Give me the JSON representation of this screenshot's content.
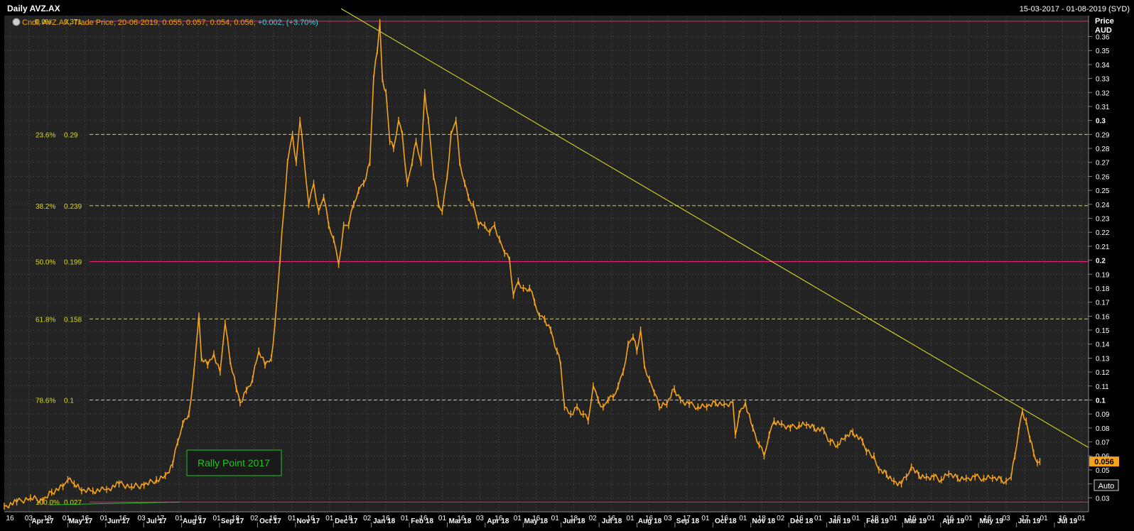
{
  "header": {
    "title": "Daily AVZ.AX",
    "date_range": "15-03-2017 - 01-08-2019 (SYD)",
    "legend_prefix": "Cndl, AVZ.AX, Trade Price, 20-06-2019, 0.055, 0.057, 0.054, 0.056,",
    "legend_change": "+0.002, (+3.70%)"
  },
  "axis": {
    "price_label": "Price",
    "currency_label": "AUD",
    "auto_button": "Auto",
    "last_price_label": "0.056"
  },
  "annotation": {
    "text": "Rally Point 2017"
  },
  "colors": {
    "background": "#232323",
    "grid": "#3a3a3a",
    "price": "#f5a31a",
    "trendline": "#e6e61e",
    "fib_solid": "#e8237a",
    "fib_dashed": "#d8d81a",
    "annotation": "#22c422",
    "change": "#3fd0e0",
    "axis_text": "#ffffff"
  },
  "chart_data": {
    "type": "line",
    "title": "Daily AVZ.AX",
    "ylabel": "Price AUD",
    "ylim": [
      0.02,
      0.375
    ],
    "y_ticks": [
      {
        "v": 0.36,
        "t": "0.36"
      },
      {
        "v": 0.35,
        "t": "0.35"
      },
      {
        "v": 0.34,
        "t": "0.34"
      },
      {
        "v": 0.33,
        "t": "0.33"
      },
      {
        "v": 0.32,
        "t": "0.32"
      },
      {
        "v": 0.31,
        "t": "0.31"
      },
      {
        "v": 0.3,
        "t": "0.3"
      },
      {
        "v": 0.29,
        "t": "0.29"
      },
      {
        "v": 0.28,
        "t": "0.28"
      },
      {
        "v": 0.27,
        "t": "0.27"
      },
      {
        "v": 0.26,
        "t": "0.26"
      },
      {
        "v": 0.25,
        "t": "0.25"
      },
      {
        "v": 0.24,
        "t": "0.24"
      },
      {
        "v": 0.23,
        "t": "0.23"
      },
      {
        "v": 0.22,
        "t": "0.22"
      },
      {
        "v": 0.21,
        "t": "0.21"
      },
      {
        "v": 0.2,
        "t": "0.2"
      },
      {
        "v": 0.19,
        "t": "0.19"
      },
      {
        "v": 0.18,
        "t": "0.18"
      },
      {
        "v": 0.17,
        "t": "0.17"
      },
      {
        "v": 0.16,
        "t": "0.16"
      },
      {
        "v": 0.15,
        "t": "0.15"
      },
      {
        "v": 0.14,
        "t": "0.14"
      },
      {
        "v": 0.13,
        "t": "0.13"
      },
      {
        "v": 0.12,
        "t": "0.12"
      },
      {
        "v": 0.11,
        "t": "0.11"
      },
      {
        "v": 0.1,
        "t": "0.1"
      },
      {
        "v": 0.09,
        "t": "0.09"
      },
      {
        "v": 0.08,
        "t": "0.08"
      },
      {
        "v": 0.07,
        "t": "0.07"
      },
      {
        "v": 0.06,
        "t": "0.06"
      },
      {
        "v": 0.05,
        "t": "0.05"
      },
      {
        "v": 0.04,
        "t": "0.04"
      },
      {
        "v": 0.03,
        "t": "0.03"
      }
    ],
    "bold_ticks": [
      "0.3",
      "0.2",
      "0.1"
    ],
    "x_day_ticks": [
      "16",
      "03",
      "18",
      "01",
      "16",
      "01",
      "16",
      "03",
      "17",
      "01",
      "16",
      "01",
      "18",
      "02",
      "16",
      "01",
      "16",
      "01",
      "18",
      "02",
      "16",
      "01",
      "16",
      "01",
      "16",
      "03",
      "16",
      "01",
      "16",
      "01",
      "18",
      "02",
      "16",
      "01",
      "16",
      "03",
      "17",
      "01",
      "16",
      "01",
      "18",
      "02",
      "16",
      "01",
      "16",
      "01",
      "18",
      "01",
      "16",
      "01",
      "16",
      "01",
      "16",
      "03",
      "17",
      "01",
      "16",
      "01"
    ],
    "x_months": [
      "Apr 17",
      "May 17",
      "Jun 17",
      "Jul 17",
      "Aug 17",
      "Sep 17",
      "Oct 17",
      "Nov 17",
      "Dec 17",
      "Jan 18",
      "Feb 18",
      "Mar 18",
      "Apr 18",
      "May 18",
      "Jun 18",
      "Jul 18",
      "Aug 18",
      "Sep 18",
      "Oct 18",
      "Nov 18",
      "Dec 18",
      "Jan 19",
      "Feb 19",
      "Mar 19",
      "Apr 19",
      "May 19",
      "Jun 19",
      "Jul 19"
    ],
    "fib_levels": [
      {
        "pct": "0.0%",
        "label": "0.371",
        "value": 0.371,
        "style": "solid"
      },
      {
        "pct": "23.6%",
        "label": "0.29",
        "value": 0.29,
        "style": "dashed"
      },
      {
        "pct": "38.2%",
        "label": "0.239",
        "value": 0.239,
        "style": "dashed"
      },
      {
        "pct": "50.0%",
        "label": "0.199",
        "value": 0.199,
        "style": "solid"
      },
      {
        "pct": "61.8%",
        "label": "0.158",
        "value": 0.158,
        "style": "dashed"
      },
      {
        "pct": "78.6%",
        "label": "0.1",
        "value": 0.1,
        "style": "dashed"
      },
      {
        "pct": "100.0%",
        "label": "0.027",
        "value": 0.027,
        "style": "solid"
      }
    ],
    "trendline": {
      "from": {
        "date": "2017-12-10",
        "value": 0.38
      },
      "to": {
        "date": "2019-08-01",
        "value": 0.066
      }
    },
    "rally_line": {
      "from": {
        "date": "2017-04-20",
        "value": 0.025
      },
      "to": {
        "date": "2017-08-03",
        "value": 0.027
      }
    },
    "series": [
      {
        "values": [
          [
            "2017-03-15",
            0.024
          ],
          [
            "2017-03-25",
            0.027
          ],
          [
            "2017-04-05",
            0.03
          ],
          [
            "2017-04-15",
            0.028
          ],
          [
            "2017-04-22",
            0.034
          ],
          [
            "2017-05-01",
            0.038
          ],
          [
            "2017-05-05",
            0.043
          ],
          [
            "2017-05-10",
            0.04
          ],
          [
            "2017-05-16",
            0.035
          ],
          [
            "2017-05-25",
            0.035
          ],
          [
            "2017-06-05",
            0.036
          ],
          [
            "2017-06-15",
            0.04
          ],
          [
            "2017-06-25",
            0.038
          ],
          [
            "2017-07-05",
            0.039
          ],
          [
            "2017-07-15",
            0.043
          ],
          [
            "2017-07-22",
            0.046
          ],
          [
            "2017-07-28",
            0.054
          ],
          [
            "2017-08-01",
            0.07
          ],
          [
            "2017-08-05",
            0.083
          ],
          [
            "2017-08-10",
            0.09
          ],
          [
            "2017-08-14",
            0.12
          ],
          [
            "2017-08-18",
            0.16
          ],
          [
            "2017-08-20",
            0.13
          ],
          [
            "2017-08-25",
            0.125
          ],
          [
            "2017-08-30",
            0.133
          ],
          [
            "2017-09-04",
            0.12
          ],
          [
            "2017-09-08",
            0.155
          ],
          [
            "2017-09-12",
            0.128
          ],
          [
            "2017-09-17",
            0.108
          ],
          [
            "2017-09-20",
            0.098
          ],
          [
            "2017-09-25",
            0.107
          ],
          [
            "2017-09-30",
            0.115
          ],
          [
            "2017-10-05",
            0.135
          ],
          [
            "2017-10-10",
            0.125
          ],
          [
            "2017-10-15",
            0.13
          ],
          [
            "2017-10-18",
            0.155
          ],
          [
            "2017-10-22",
            0.2
          ],
          [
            "2017-10-25",
            0.235
          ],
          [
            "2017-10-28",
            0.27
          ],
          [
            "2017-11-01",
            0.29
          ],
          [
            "2017-11-04",
            0.27
          ],
          [
            "2017-11-07",
            0.3
          ],
          [
            "2017-11-10",
            0.275
          ],
          [
            "2017-11-14",
            0.24
          ],
          [
            "2017-11-18",
            0.255
          ],
          [
            "2017-11-22",
            0.235
          ],
          [
            "2017-11-26",
            0.245
          ],
          [
            "2017-11-30",
            0.225
          ],
          [
            "2017-12-04",
            0.215
          ],
          [
            "2017-12-08",
            0.197
          ],
          [
            "2017-12-12",
            0.225
          ],
          [
            "2017-12-16",
            0.225
          ],
          [
            "2017-12-20",
            0.24
          ],
          [
            "2017-12-24",
            0.25
          ],
          [
            "2017-12-28",
            0.255
          ],
          [
            "2018-01-02",
            0.27
          ],
          [
            "2018-01-05",
            0.33
          ],
          [
            "2018-01-08",
            0.35
          ],
          [
            "2018-01-10",
            0.37
          ],
          [
            "2018-01-12",
            0.33
          ],
          [
            "2018-01-15",
            0.32
          ],
          [
            "2018-01-18",
            0.285
          ],
          [
            "2018-01-21",
            0.28
          ],
          [
            "2018-01-25",
            0.3
          ],
          [
            "2018-01-28",
            0.29
          ],
          [
            "2018-02-01",
            0.255
          ],
          [
            "2018-02-05",
            0.27
          ],
          [
            "2018-02-08",
            0.285
          ],
          [
            "2018-02-12",
            0.27
          ],
          [
            "2018-02-15",
            0.32
          ],
          [
            "2018-02-18",
            0.3
          ],
          [
            "2018-02-22",
            0.26
          ],
          [
            "2018-02-26",
            0.24
          ],
          [
            "2018-03-01",
            0.235
          ],
          [
            "2018-03-05",
            0.26
          ],
          [
            "2018-03-08",
            0.29
          ],
          [
            "2018-03-12",
            0.3
          ],
          [
            "2018-03-15",
            0.27
          ],
          [
            "2018-03-19",
            0.255
          ],
          [
            "2018-03-22",
            0.245
          ],
          [
            "2018-03-26",
            0.24
          ],
          [
            "2018-03-30",
            0.225
          ],
          [
            "2018-04-04",
            0.225
          ],
          [
            "2018-04-08",
            0.22
          ],
          [
            "2018-04-12",
            0.225
          ],
          [
            "2018-04-16",
            0.215
          ],
          [
            "2018-04-20",
            0.205
          ],
          [
            "2018-04-24",
            0.2
          ],
          [
            "2018-04-27",
            0.175
          ],
          [
            "2018-05-01",
            0.185
          ],
          [
            "2018-05-05",
            0.18
          ],
          [
            "2018-05-10",
            0.18
          ],
          [
            "2018-05-14",
            0.17
          ],
          [
            "2018-05-18",
            0.16
          ],
          [
            "2018-05-22",
            0.158
          ],
          [
            "2018-05-27",
            0.15
          ],
          [
            "2018-06-01",
            0.135
          ],
          [
            "2018-06-04",
            0.125
          ],
          [
            "2018-06-07",
            0.095
          ],
          [
            "2018-06-12",
            0.09
          ],
          [
            "2018-06-17",
            0.095
          ],
          [
            "2018-06-22",
            0.09
          ],
          [
            "2018-06-26",
            0.085
          ],
          [
            "2018-06-30",
            0.11
          ],
          [
            "2018-07-04",
            0.1
          ],
          [
            "2018-07-08",
            0.095
          ],
          [
            "2018-07-12",
            0.1
          ],
          [
            "2018-07-16",
            0.102
          ],
          [
            "2018-07-20",
            0.11
          ],
          [
            "2018-07-24",
            0.12
          ],
          [
            "2018-07-28",
            0.14
          ],
          [
            "2018-08-01",
            0.145
          ],
          [
            "2018-08-04",
            0.135
          ],
          [
            "2018-08-07",
            0.15
          ],
          [
            "2018-08-10",
            0.125
          ],
          [
            "2018-08-14",
            0.115
          ],
          [
            "2018-08-18",
            0.105
          ],
          [
            "2018-08-22",
            0.095
          ],
          [
            "2018-08-28",
            0.097
          ],
          [
            "2018-09-03",
            0.108
          ],
          [
            "2018-09-08",
            0.1
          ],
          [
            "2018-09-15",
            0.097
          ],
          [
            "2018-09-22",
            0.095
          ],
          [
            "2018-09-29",
            0.095
          ],
          [
            "2018-10-06",
            0.098
          ],
          [
            "2018-10-13",
            0.097
          ],
          [
            "2018-10-20",
            0.098
          ],
          [
            "2018-10-22",
            0.075
          ],
          [
            "2018-10-25",
            0.09
          ],
          [
            "2018-10-30",
            0.098
          ],
          [
            "2018-11-05",
            0.08
          ],
          [
            "2018-11-10",
            0.068
          ],
          [
            "2018-11-14",
            0.06
          ],
          [
            "2018-11-18",
            0.075
          ],
          [
            "2018-11-22",
            0.085
          ],
          [
            "2018-11-28",
            0.083
          ],
          [
            "2018-12-05",
            0.08
          ],
          [
            "2018-12-12",
            0.082
          ],
          [
            "2018-12-18",
            0.082
          ],
          [
            "2018-12-24",
            0.08
          ],
          [
            "2019-01-01",
            0.078
          ],
          [
            "2019-01-06",
            0.07
          ],
          [
            "2019-01-12",
            0.068
          ],
          [
            "2019-01-18",
            0.073
          ],
          [
            "2019-01-24",
            0.077
          ],
          [
            "2019-02-01",
            0.07
          ],
          [
            "2019-02-04",
            0.063
          ],
          [
            "2019-02-10",
            0.06
          ],
          [
            "2019-02-14",
            0.05
          ],
          [
            "2019-02-20",
            0.047
          ],
          [
            "2019-02-26",
            0.042
          ],
          [
            "2019-03-04",
            0.04
          ],
          [
            "2019-03-08",
            0.045
          ],
          [
            "2019-03-12",
            0.052
          ],
          [
            "2019-03-18",
            0.046
          ],
          [
            "2019-03-24",
            0.045
          ],
          [
            "2019-03-30",
            0.045
          ],
          [
            "2019-04-05",
            0.043
          ],
          [
            "2019-04-11",
            0.047
          ],
          [
            "2019-04-18",
            0.044
          ],
          [
            "2019-04-25",
            0.044
          ],
          [
            "2019-05-02",
            0.045
          ],
          [
            "2019-05-09",
            0.044
          ],
          [
            "2019-05-16",
            0.044
          ],
          [
            "2019-05-23",
            0.043
          ],
          [
            "2019-05-27",
            0.042
          ],
          [
            "2019-05-31",
            0.045
          ],
          [
            "2019-06-03",
            0.06
          ],
          [
            "2019-06-06",
            0.078
          ],
          [
            "2019-06-09",
            0.092
          ],
          [
            "2019-06-12",
            0.085
          ],
          [
            "2019-06-15",
            0.072
          ],
          [
            "2019-06-18",
            0.062
          ],
          [
            "2019-06-21",
            0.055
          ],
          [
            "2019-06-23",
            0.056
          ]
        ]
      }
    ]
  }
}
